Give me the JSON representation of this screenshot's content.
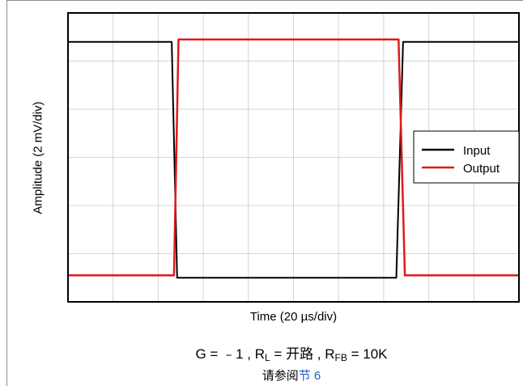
{
  "chart_data": {
    "type": "line",
    "xlabel": "Time (20 µs/div)",
    "ylabel": "Amplitude (2 mV/div)",
    "x_divisions": 10,
    "y_divisions": 6,
    "grid": true,
    "legend_position": "right",
    "series": [
      {
        "name": "Input",
        "color": "#000000",
        "x": [
          0,
          2.3,
          2.42,
          7.28,
          7.43,
          10
        ],
        "y": [
          5.4,
          5.4,
          0.5,
          0.5,
          5.4,
          5.4
        ]
      },
      {
        "name": "Output",
        "color": "#e0191b",
        "x": [
          0,
          2.35,
          2.45,
          7.33,
          7.47,
          10
        ],
        "y": [
          0.55,
          0.55,
          5.45,
          5.45,
          0.55,
          0.55
        ]
      }
    ]
  },
  "caption": {
    "g_label": "G = ",
    "g_value": "﹣1 ,",
    "rl_label": "R",
    "rl_sub": "L",
    "rl_value": "= 开路 ,",
    "rfb_label": "R",
    "rfb_sub": "FB",
    "rfb_value": "= 10K",
    "see_text": "请参阅",
    "link_text": "节 6"
  }
}
